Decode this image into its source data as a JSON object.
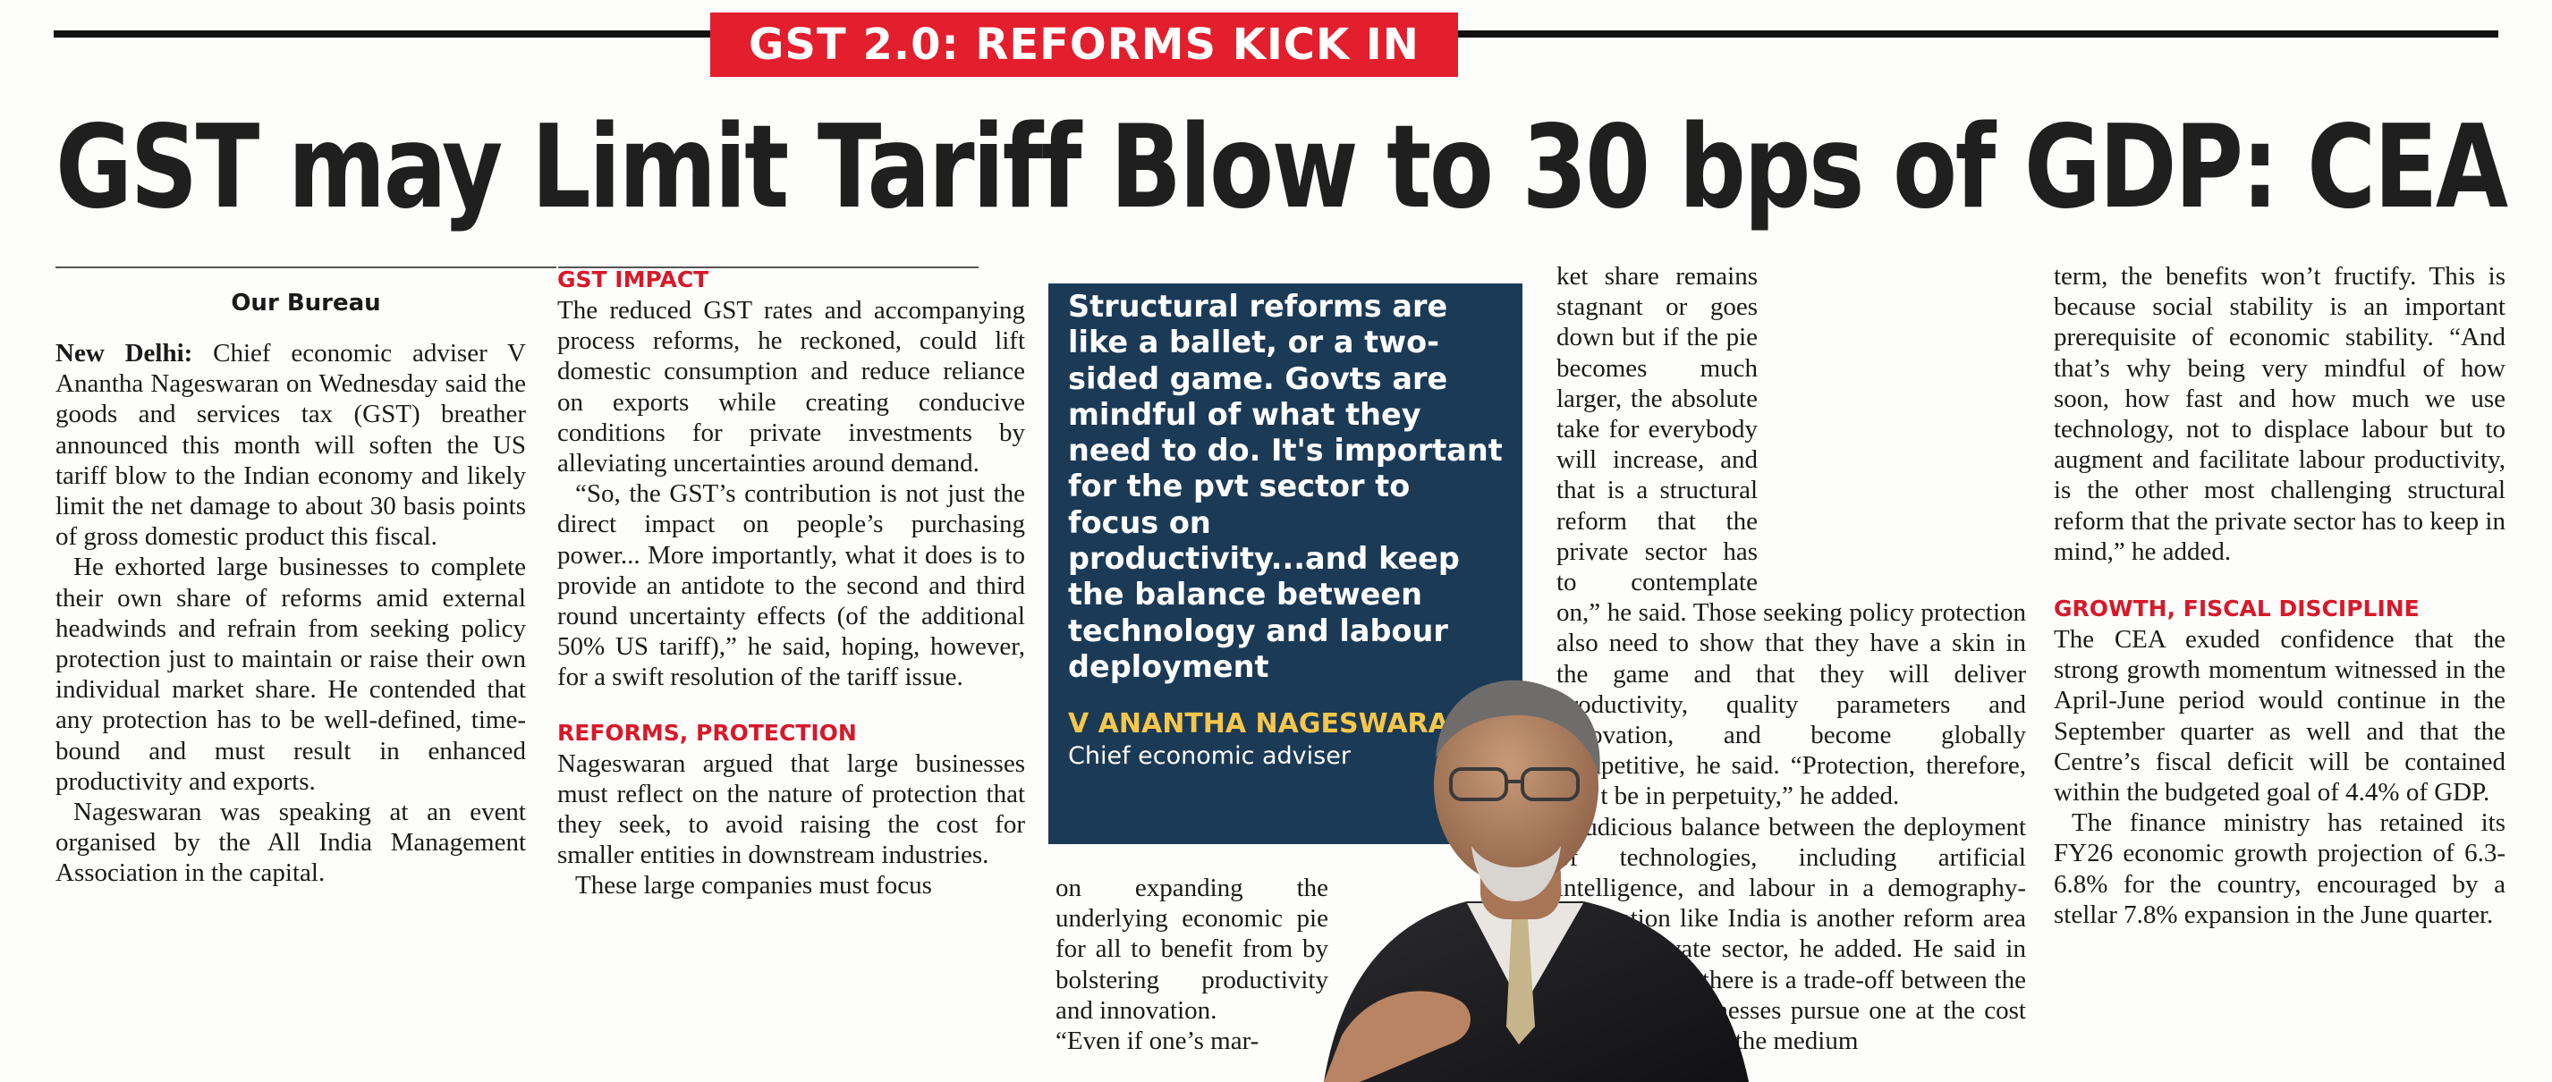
{
  "kicker": "GST 2.0: REFORMS KICK IN",
  "headline": "GST may Limit Tariff Blow to 30 bps of GDP: CEA",
  "byline": "Our Bureau",
  "column1": {
    "dateline": "New Delhi:",
    "p1": "Chief economic adviser V Anantha Nageswaran on Wednesday said the goods and services tax (GST) breather announced this month will soften the US tariff blow to the Indian economy and likely limit the net damage to about 30 basis points of gross domestic product this fiscal.",
    "p2": "He exhorted large businesses to complete their own share of reforms amid external headwinds and refrain from seeking policy protection just to maintain or raise their own individual market share. He contended that any protection has to be well-defined, time-bound and must result in enhanced productivity and exports.",
    "p3": "Nageswaran was speaking at an event organised by the All India Management Association in the capital."
  },
  "column2": {
    "sub1": "GST IMPACT",
    "p1": "The reduced GST rates and accompanying process reforms, he reckoned, could lift domestic consumption and reduce reliance on exports while creating conducive conditions for private investments by alleviating uncertainties around demand.",
    "p2": "“So, the GST’s contribution is not just the direct impact on people’s purchasing power... More importantly, what it does is to provide an antidote to the second and third round uncertainty effects (of the additional 50% US tariff),” he said, hoping, however, for a swift resolution of the tariff issue.",
    "sub2": "REFORMS, PROTECTION",
    "p3": "Nageswaran argued that large businesses must reflect on the nature of protection that they seek, to avoid raising the cost for smaller entities in downstream industries.",
    "p4": "These large companies must focus"
  },
  "column3": {
    "p1": "on expanding the underlying economic pie for all to benefit from by bolstering productivity and innovation.",
    "p2": "“Even if one’s mar-"
  },
  "column4": {
    "p1": "ket share remains stagnant or goes down but if the pie becomes much larger, the absolute take for everybody will increase, and that is a structural reform that the private sector has to contemplate on,” he said. Those seeking policy protection also need to show that they have a skin in the game and that they will deliver productivity, quality parameters and innovation, and become globally competitive, he said. “Protection, therefore, can’t be in perpetuity,” he added.",
    "p2": "Judicious balance between the deployment of technologies, including artificial intelligence, and labour in a demography-rich nation like India is another reform area for the private sector, he added. He said in the short run, there is a trade-off between the two but if businesses pursue one at the cost of the other over the medium"
  },
  "column5": {
    "p1": "term, the benefits won’t fructify. This is because social stability is an important prerequisite of economic stability. “And that’s why being very mindful of how soon, how fast and how much we use technology, not to displace labour but to augment and facilitate labour productivity, is the other most challenging structural reform that the private sector has to keep in mind,” he added.",
    "sub": "GROWTH, FISCAL DISCIPLINE",
    "p2": "The CEA exuded confidence that the strong growth momentum witnessed in the April-June period would continue in the September quarter as well and that the Centre’s fiscal deficit will be contained within the budgeted goal of 4.4% of GDP.",
    "p3": "The finance ministry has retained its FY26 economic growth projection of 6.3-6.8% for the country, encouraged by a stellar 7.8% expansion in the June quarter."
  },
  "quote": {
    "text": "Structural reforms are like a ballet, or a two-sided game. Govts are mindful of what they need to do. It's important for the pvt sector to focus on productivity...and keep the balance between technology and labour deployment",
    "name": "V ANANTHA NAGESWARAN",
    "role": "Chief economic adviser"
  },
  "colors": {
    "accent": "#e31e2d",
    "quote_bg": "#1b3a56",
    "quote_name": "#f7c64b"
  }
}
